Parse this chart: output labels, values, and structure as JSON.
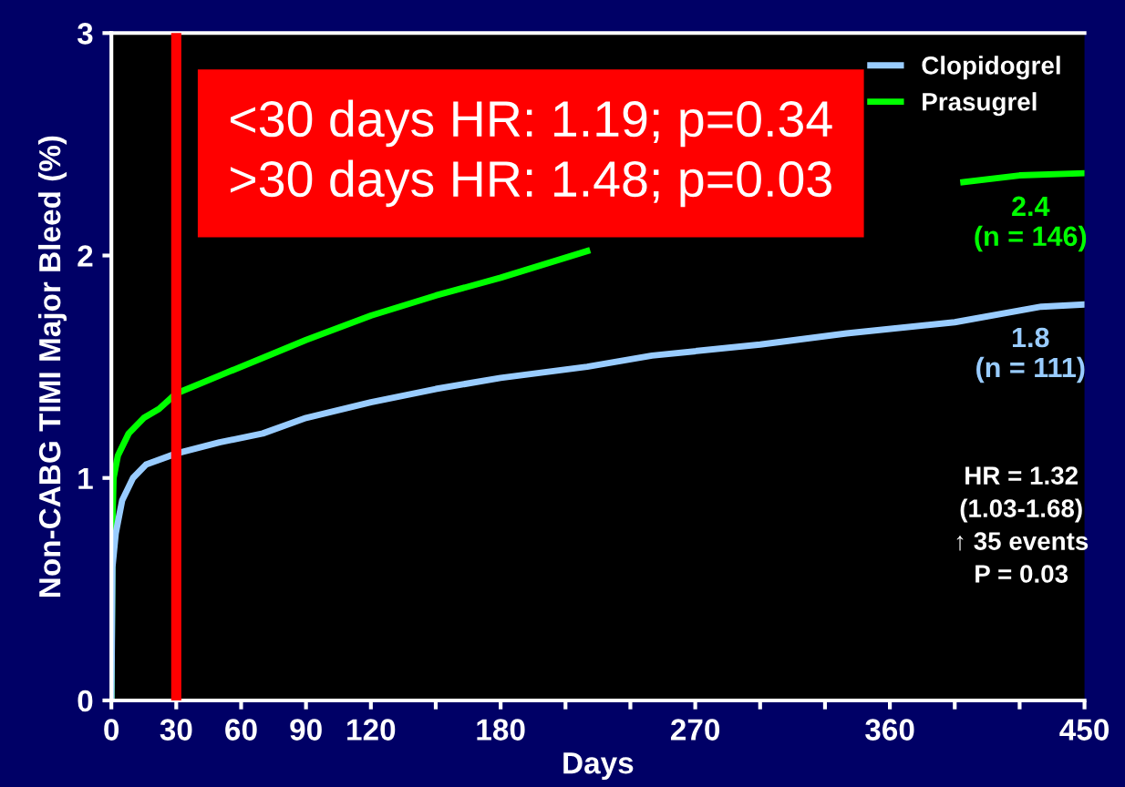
{
  "chart_data": {
    "type": "line",
    "xlabel": "Days",
    "ylabel": "Non-CABG TIMI Major Bleed (%)",
    "xlim": [
      0,
      450
    ],
    "ylim": [
      0,
      3
    ],
    "xticks": [
      0,
      30,
      60,
      90,
      120,
      {
        "value": 150,
        "label": null
      },
      180,
      {
        "value": 210,
        "label": null
      },
      {
        "value": 240,
        "label": null
      },
      270,
      {
        "value": 300,
        "label": null
      },
      {
        "value": 330,
        "label": null
      },
      360,
      {
        "value": 390,
        "label": null
      },
      {
        "value": 420,
        "label": null
      },
      450
    ],
    "yticks": [
      0,
      1,
      2,
      3
    ],
    "grid": false,
    "legend": "top right",
    "line_style": "solid",
    "marker": "none",
    "series": [
      {
        "name": "Prasugrel",
        "color": "#00ff00",
        "x": [
          0,
          0.5,
          1,
          3,
          8,
          15,
          22,
          30,
          50,
          75,
          90,
          120,
          150,
          180,
          220,
          300,
          394,
          420,
          450
        ],
        "values": [
          0,
          0.8,
          1.0,
          1.1,
          1.2,
          1.27,
          1.31,
          1.38,
          1.46,
          1.56,
          1.62,
          1.73,
          1.82,
          1.9,
          2.02,
          null,
          2.33,
          2.36,
          2.37
        ]
      },
      {
        "name": "Clopidogrel",
        "color": "#99ccff",
        "x": [
          0,
          0.5,
          2,
          5,
          10,
          16,
          30,
          50,
          70,
          90,
          120,
          150,
          180,
          220,
          250,
          300,
          340,
          390,
          430,
          450
        ],
        "values": [
          0,
          0.6,
          0.75,
          0.9,
          1.0,
          1.06,
          1.11,
          1.16,
          1.2,
          1.27,
          1.34,
          1.4,
          1.45,
          1.5,
          1.55,
          1.6,
          1.65,
          1.7,
          1.77,
          1.78
        ]
      }
    ],
    "ref_lines": [
      {
        "axis": "x",
        "value": 30,
        "color": "#ff0000"
      }
    ],
    "annotations": [
      "<30 days HR: 1.19; p=0.34\n>30 days HR: 1.48; p=0.03",
      "HR = 1.32\n(1.03-1.68)\n↑ 35 events\nP = 0.03",
      {
        "text": "2.4\n(n = 146)",
        "x": 425,
        "y": 2.36
      },
      {
        "text": "1.8\n(n = 111)",
        "x": 425,
        "y": 1.77
      }
    ]
  }
}
